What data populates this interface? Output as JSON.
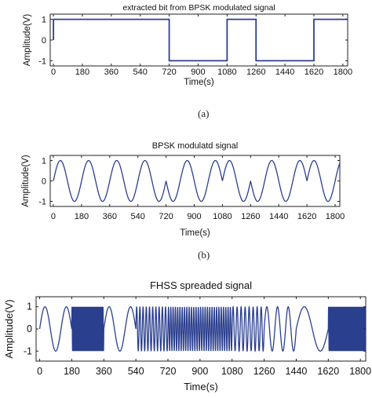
{
  "panels": [
    {
      "caption": "(a)",
      "tick_unit": ""
    },
    {
      "caption": "(b)"
    },
    {
      "caption": ""
    }
  ],
  "chart_data": [
    {
      "type": "line",
      "title": "extracted bit from BPSK modulated signal",
      "xlabel": "Time(s)",
      "ylabel": "Amplitude(V)",
      "xlim": [
        -20,
        1830
      ],
      "ylim": [
        -1.25,
        1.25
      ],
      "xticks": [
        0,
        180,
        360,
        540,
        720,
        900,
        1080,
        1260,
        1440,
        1620,
        1800
      ],
      "yticks": [
        1,
        0,
        -1
      ],
      "grid": false,
      "series": [
        {
          "x": [
            0,
            0,
            720,
            720,
            1080,
            1080,
            1260,
            1260,
            1620,
            1620,
            1830
          ],
          "y": [
            0,
            1,
            1,
            -1,
            -1,
            1,
            1,
            -1,
            -1,
            1,
            1
          ],
          "color": "#2b3f8f"
        }
      ]
    },
    {
      "type": "line",
      "title": "BPSK modulatd signal",
      "xlabel": "Time(s)",
      "ylabel": "Amplitude(V)",
      "xlim": [
        -20,
        1830
      ],
      "ylim": [
        -1.25,
        1.25
      ],
      "xticks": [
        0,
        180,
        360,
        540,
        720,
        900,
        1080,
        1260,
        1440,
        1620,
        1800
      ],
      "yticks": [
        1,
        0,
        -1
      ],
      "grid": false,
      "carrier_period_s": 180,
      "bit_segments": [
        {
          "from": 0,
          "to": 720,
          "bit": 1
        },
        {
          "from": 720,
          "to": 1080,
          "bit": -1
        },
        {
          "from": 1080,
          "to": 1260,
          "bit": 1
        },
        {
          "from": 1260,
          "to": 1620,
          "bit": -1
        },
        {
          "from": 1620,
          "to": 1830,
          "bit": 1
        }
      ],
      "color": "#2b3f8f"
    },
    {
      "type": "line",
      "title": "FHSS spreaded signal",
      "xlabel": "Time(s)",
      "ylabel": "Amplitude(V)",
      "xlim": [
        -20,
        1830
      ],
      "ylim": [
        -1.45,
        1.45
      ],
      "xticks": [
        0,
        180,
        360,
        540,
        720,
        900,
        1080,
        1260,
        1440,
        1620,
        1800
      ],
      "yticks": [
        1,
        0,
        -1
      ],
      "grid": false,
      "hop_segments": [
        {
          "from": 0,
          "to": 180,
          "cycles_per_180s": 1.5
        },
        {
          "from": 180,
          "to": 360,
          "cycles_per_180s": 30
        },
        {
          "from": 360,
          "to": 540,
          "cycles_per_180s": 1.5
        },
        {
          "from": 540,
          "to": 720,
          "cycles_per_180s": 10
        },
        {
          "from": 720,
          "to": 900,
          "cycles_per_180s": 14
        },
        {
          "from": 900,
          "to": 1080,
          "cycles_per_180s": 14
        },
        {
          "from": 1080,
          "to": 1260,
          "cycles_per_180s": 8
        },
        {
          "from": 1260,
          "to": 1440,
          "cycles_per_180s": 3
        },
        {
          "from": 1440,
          "to": 1620,
          "cycles_per_180s": 1
        },
        {
          "from": 1620,
          "to": 1830,
          "cycles_per_180s": 30
        }
      ],
      "color": "#2b3f8f"
    }
  ]
}
